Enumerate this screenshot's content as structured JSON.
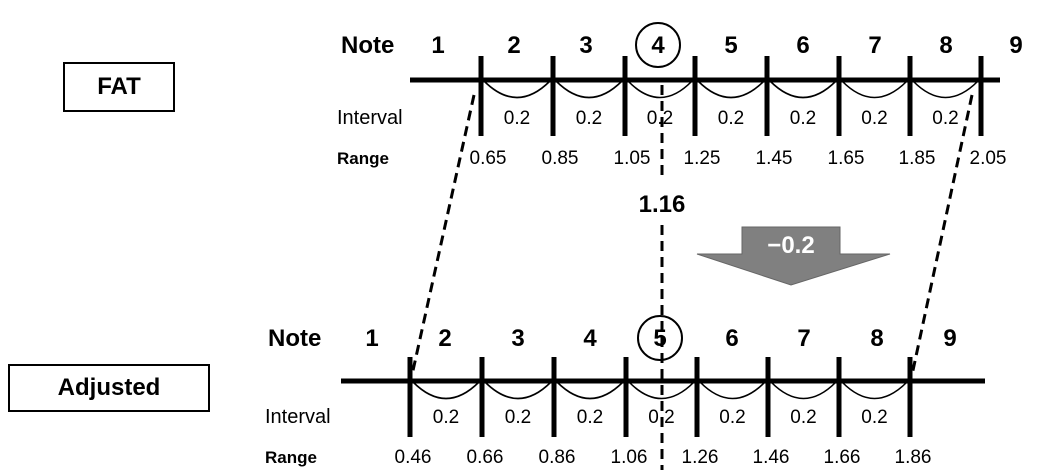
{
  "fat": {
    "label": "FAT",
    "note_title": "Note",
    "notes": [
      "1",
      "2",
      "3",
      "4",
      "5",
      "6",
      "7",
      "8",
      "9"
    ],
    "circled_note_index": 3,
    "interval_title": "Interval",
    "intervals": [
      "0.2",
      "0.2",
      "0.2",
      "0.2",
      "0.2",
      "0.2",
      "0.2"
    ],
    "range_title": "Range",
    "ranges": [
      "0.65",
      "0.85",
      "1.05",
      "1.25",
      "1.45",
      "1.65",
      "1.85",
      "2.05"
    ]
  },
  "marker_value": "1.16",
  "shift_label": "−0.2",
  "adjusted": {
    "label": "Adjusted",
    "note_title": "Note",
    "notes": [
      "1",
      "2",
      "3",
      "4",
      "5",
      "6",
      "7",
      "8",
      "9"
    ],
    "circled_note_index": 4,
    "interval_title": "Interval",
    "intervals": [
      "0.2",
      "0.2",
      "0.2",
      "0.2",
      "0.2",
      "0.2",
      "0.2"
    ],
    "range_title": "Range",
    "ranges": [
      "0.46",
      "0.66",
      "0.86",
      "1.06",
      "1.26",
      "1.46",
      "1.66",
      "1.86"
    ]
  },
  "colors": {
    "line": "#000000",
    "arrow_fill": "#808080",
    "arrow_text": "#ffffff"
  }
}
